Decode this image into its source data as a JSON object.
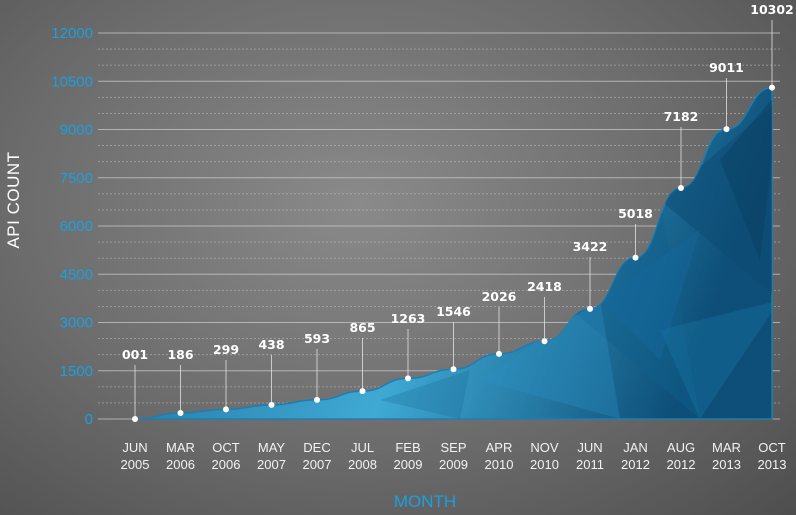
{
  "chart_data": {
    "type": "area",
    "xlabel": "MONTH",
    "ylabel": "API COUNT",
    "ylim": [
      0,
      12000
    ],
    "yticks": [
      0,
      1500,
      3000,
      4500,
      6000,
      7500,
      9000,
      10500,
      12000
    ],
    "ytick_labels": [
      "0",
      "1500",
      "3000",
      "4500",
      "6000",
      "7500",
      "9000",
      "10500",
      "12000"
    ],
    "grid": true,
    "categories": [
      {
        "month": "JUN",
        "year": "2005"
      },
      {
        "month": "MAR",
        "year": "2006"
      },
      {
        "month": "OCT",
        "year": "2006"
      },
      {
        "month": "MAY",
        "year": "2007"
      },
      {
        "month": "DEC",
        "year": "2007"
      },
      {
        "month": "JUL",
        "year": "2008"
      },
      {
        "month": "FEB",
        "year": "2009"
      },
      {
        "month": "SEP",
        "year": "2009"
      },
      {
        "month": "APR",
        "year": "2010"
      },
      {
        "month": "NOV",
        "year": "2010"
      },
      {
        "month": "JUN",
        "year": "2011"
      },
      {
        "month": "JAN",
        "year": "2012"
      },
      {
        "month": "AUG",
        "year": "2012"
      },
      {
        "month": "MAR",
        "year": "2013"
      },
      {
        "month": "OCT",
        "year": "2013"
      }
    ],
    "values": [
      1,
      186,
      299,
      438,
      593,
      865,
      1263,
      1546,
      2026,
      2418,
      3422,
      5018,
      7182,
      9011,
      10302
    ],
    "value_labels": [
      "001",
      "186",
      "299",
      "438",
      "593",
      "865",
      "1263",
      "1546",
      "2026",
      "2418",
      "3422",
      "5018",
      "7182",
      "9011",
      "10302"
    ],
    "colors": {
      "area_light": "#3fa9d4",
      "area_dark": "#0d4f78",
      "axis_label": "#1aa0e0",
      "grid": "#c9c9c9"
    }
  }
}
